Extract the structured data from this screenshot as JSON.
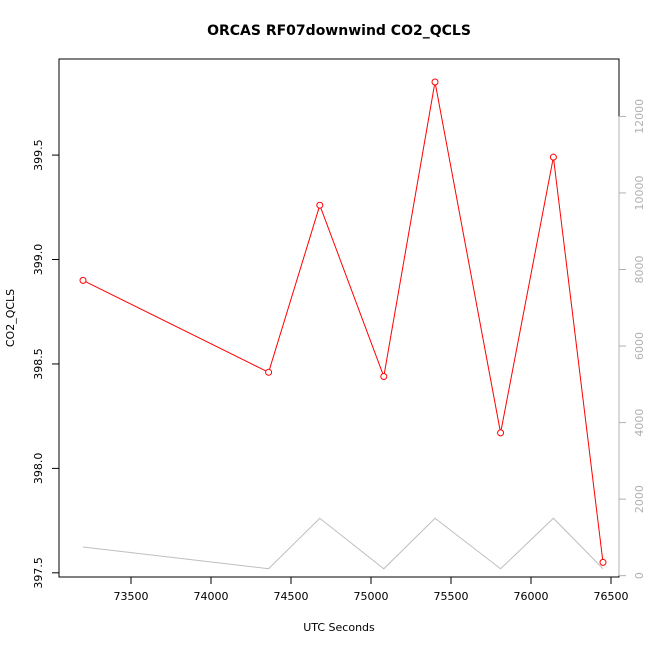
{
  "chart_data": {
    "type": "line",
    "title": "ORCAS RF07downwind CO2_QCLS",
    "xlabel": "UTC Seconds",
    "ylabel": "CO2_QCLS",
    "xlim": [
      73050,
      76550
    ],
    "ylim": [
      397.48,
      399.96
    ],
    "y2lim": [
      -35,
      13500
    ],
    "grid": false,
    "x_ticks": [
      73500,
      74000,
      74500,
      75000,
      75500,
      76000,
      76500
    ],
    "x_tick_labels": [
      "73500",
      "74000",
      "74500",
      "75000",
      "75500",
      "76000",
      "76500"
    ],
    "y_ticks": [
      397.5,
      398.0,
      398.5,
      399.0,
      399.5
    ],
    "y_tick_labels": [
      "397.5",
      "398.0",
      "398.5",
      "399.0",
      "399.5"
    ],
    "y2_ticks": [
      0,
      2000,
      4000,
      6000,
      8000,
      10000,
      12000
    ],
    "y2_tick_labels": [
      "0",
      "2000",
      "4000",
      "6000",
      "8000",
      "10000",
      "12000"
    ],
    "series": [
      {
        "axis": "left",
        "color": "#ff0000",
        "markers": "open-circle",
        "x": [
          73200,
          74360,
          74680,
          75080,
          75400,
          75810,
          76140,
          76450
        ],
        "y": [
          398.9,
          398.46,
          399.26,
          398.44,
          399.85,
          398.17,
          399.49,
          397.55
        ]
      },
      {
        "axis": "right",
        "color": "#bebebe",
        "markers": "none",
        "x": [
          73200,
          74360,
          74680,
          75080,
          75400,
          75810,
          76140,
          76450
        ],
        "y": [
          750,
          180,
          1500,
          180,
          1500,
          180,
          1500,
          180
        ]
      }
    ]
  }
}
